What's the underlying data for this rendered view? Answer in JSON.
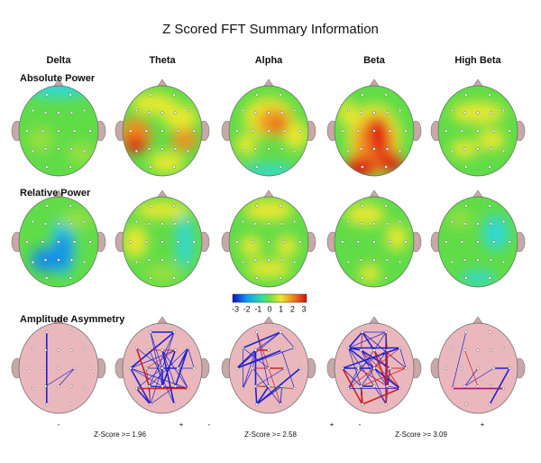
{
  "title": "Z Scored FFT Summary Information",
  "columns": [
    "Delta",
    "Theta",
    "Alpha",
    "Beta",
    "High Beta"
  ],
  "rows": [
    "Absolute Power",
    "Relative Power",
    "Amplitude Asymmetry"
  ],
  "colorbar": {
    "ticks": [
      -3,
      -2,
      -1,
      0,
      1,
      2,
      3
    ]
  },
  "legends": [
    {
      "minus": "-",
      "plus": "+",
      "label": "Z-Score >= 1.96"
    },
    {
      "minus": "-",
      "plus": "+",
      "label": "Z-Score >= 2.58"
    },
    {
      "minus": "-",
      "plus": "+",
      "label": "Z-Score >= 3.09"
    }
  ]
}
